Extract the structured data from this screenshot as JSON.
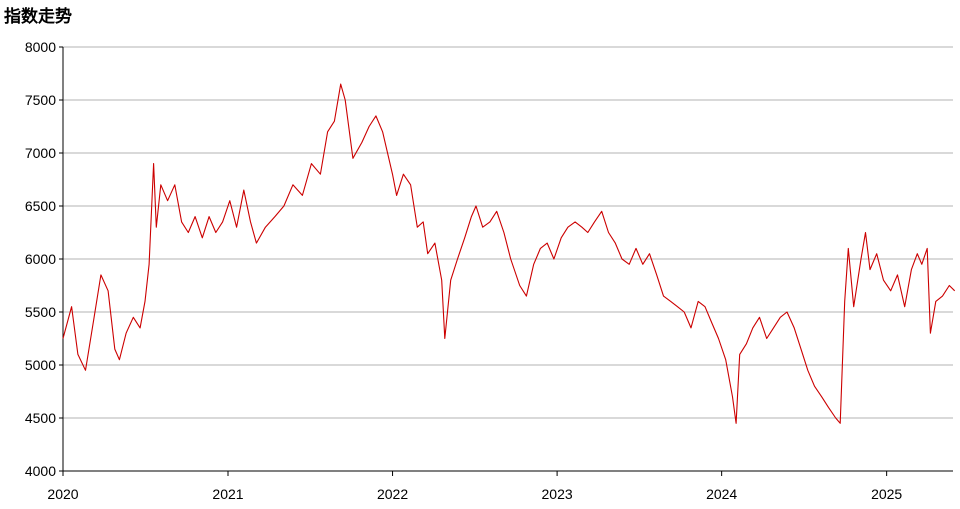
{
  "chart_data": {
    "type": "line",
    "title": "指数走势",
    "xlabel": "",
    "ylabel": "",
    "x_ticks": [
      "2020",
      "2021",
      "2022",
      "2023",
      "2024",
      "2025"
    ],
    "y_ticks": [
      4000,
      4500,
      5000,
      5500,
      6000,
      6500,
      7000,
      7500,
      8000
    ],
    "ylim": [
      4000,
      8000
    ],
    "xlim": [
      "2020-01-01",
      "2025-06-01"
    ],
    "grid": true,
    "legend": "none",
    "colors": {
      "line": "#cc0000",
      "grid": "#b3b3b3"
    },
    "series": [
      {
        "points": [
          [
            "2020-01-01",
            5250
          ],
          [
            "2020-01-20",
            5550
          ],
          [
            "2020-02-03",
            5100
          ],
          [
            "2020-02-20",
            4950
          ],
          [
            "2020-03-10",
            5450
          ],
          [
            "2020-03-25",
            5850
          ],
          [
            "2020-04-10",
            5700
          ],
          [
            "2020-04-25",
            5150
          ],
          [
            "2020-05-05",
            5050
          ],
          [
            "2020-05-20",
            5300
          ],
          [
            "2020-06-05",
            5450
          ],
          [
            "2020-06-20",
            5350
          ],
          [
            "2020-07-01",
            5600
          ],
          [
            "2020-07-10",
            5950
          ],
          [
            "2020-07-20",
            6900
          ],
          [
            "2020-07-26",
            6300
          ],
          [
            "2020-08-05",
            6700
          ],
          [
            "2020-08-20",
            6550
          ],
          [
            "2020-09-05",
            6700
          ],
          [
            "2020-09-20",
            6350
          ],
          [
            "2020-10-05",
            6250
          ],
          [
            "2020-10-20",
            6400
          ],
          [
            "2020-11-05",
            6200
          ],
          [
            "2020-11-20",
            6400
          ],
          [
            "2020-12-05",
            6250
          ],
          [
            "2020-12-20",
            6350
          ],
          [
            "2021-01-05",
            6550
          ],
          [
            "2021-01-20",
            6300
          ],
          [
            "2021-02-05",
            6650
          ],
          [
            "2021-02-20",
            6350
          ],
          [
            "2021-03-05",
            6150
          ],
          [
            "2021-03-25",
            6300
          ],
          [
            "2021-04-15",
            6400
          ],
          [
            "2021-05-05",
            6500
          ],
          [
            "2021-05-25",
            6700
          ],
          [
            "2021-06-15",
            6600
          ],
          [
            "2021-07-05",
            6900
          ],
          [
            "2021-07-25",
            6800
          ],
          [
            "2021-08-10",
            7200
          ],
          [
            "2021-08-25",
            7300
          ],
          [
            "2021-09-08",
            7650
          ],
          [
            "2021-09-18",
            7500
          ],
          [
            "2021-10-05",
            6950
          ],
          [
            "2021-10-25",
            7100
          ],
          [
            "2021-11-10",
            7250
          ],
          [
            "2021-11-25",
            7350
          ],
          [
            "2021-12-10",
            7200
          ],
          [
            "2022-01-01",
            6800
          ],
          [
            "2022-01-10",
            6600
          ],
          [
            "2022-01-25",
            6800
          ],
          [
            "2022-02-10",
            6700
          ],
          [
            "2022-02-25",
            6300
          ],
          [
            "2022-03-10",
            6350
          ],
          [
            "2022-03-20",
            6050
          ],
          [
            "2022-04-05",
            6150
          ],
          [
            "2022-04-20",
            5800
          ],
          [
            "2022-04-27",
            5250
          ],
          [
            "2022-05-10",
            5800
          ],
          [
            "2022-05-25",
            6000
          ],
          [
            "2022-06-10",
            6200
          ],
          [
            "2022-06-25",
            6400
          ],
          [
            "2022-07-05",
            6500
          ],
          [
            "2022-07-20",
            6300
          ],
          [
            "2022-08-05",
            6350
          ],
          [
            "2022-08-20",
            6450
          ],
          [
            "2022-09-05",
            6250
          ],
          [
            "2022-09-20",
            6000
          ],
          [
            "2022-10-10",
            5750
          ],
          [
            "2022-10-25",
            5650
          ],
          [
            "2022-11-10",
            5950
          ],
          [
            "2022-11-25",
            6100
          ],
          [
            "2022-12-10",
            6150
          ],
          [
            "2022-12-25",
            6000
          ],
          [
            "2023-01-10",
            6200
          ],
          [
            "2023-01-25",
            6300
          ],
          [
            "2023-02-10",
            6350
          ],
          [
            "2023-02-25",
            6300
          ],
          [
            "2023-03-10",
            6250
          ],
          [
            "2023-03-25",
            6350
          ],
          [
            "2023-04-10",
            6450
          ],
          [
            "2023-04-25",
            6250
          ],
          [
            "2023-05-10",
            6150
          ],
          [
            "2023-05-25",
            6000
          ],
          [
            "2023-06-10",
            5950
          ],
          [
            "2023-06-25",
            6100
          ],
          [
            "2023-07-10",
            5950
          ],
          [
            "2023-07-25",
            6050
          ],
          [
            "2023-08-10",
            5850
          ],
          [
            "2023-08-25",
            5650
          ],
          [
            "2023-09-10",
            5600
          ],
          [
            "2023-09-25",
            5550
          ],
          [
            "2023-10-10",
            5500
          ],
          [
            "2023-10-25",
            5350
          ],
          [
            "2023-11-10",
            5600
          ],
          [
            "2023-11-25",
            5550
          ],
          [
            "2023-12-10",
            5400
          ],
          [
            "2023-12-25",
            5250
          ],
          [
            "2024-01-10",
            5050
          ],
          [
            "2024-01-25",
            4700
          ],
          [
            "2024-02-02",
            4450
          ],
          [
            "2024-02-10",
            5100
          ],
          [
            "2024-02-25",
            5200
          ],
          [
            "2024-03-10",
            5350
          ],
          [
            "2024-03-25",
            5450
          ],
          [
            "2024-04-10",
            5250
          ],
          [
            "2024-04-25",
            5350
          ],
          [
            "2024-05-10",
            5450
          ],
          [
            "2024-05-25",
            5500
          ],
          [
            "2024-06-10",
            5350
          ],
          [
            "2024-06-25",
            5150
          ],
          [
            "2024-07-10",
            4950
          ],
          [
            "2024-07-25",
            4800
          ],
          [
            "2024-08-10",
            4700
          ],
          [
            "2024-08-25",
            4600
          ],
          [
            "2024-09-10",
            4500
          ],
          [
            "2024-09-20",
            4450
          ],
          [
            "2024-09-30",
            5600
          ],
          [
            "2024-10-08",
            6100
          ],
          [
            "2024-10-20",
            5550
          ],
          [
            "2024-11-05",
            6000
          ],
          [
            "2024-11-15",
            6250
          ],
          [
            "2024-11-25",
            5900
          ],
          [
            "2024-12-10",
            6050
          ],
          [
            "2024-12-25",
            5800
          ],
          [
            "2025-01-10",
            5700
          ],
          [
            "2025-01-25",
            5850
          ],
          [
            "2025-02-10",
            5550
          ],
          [
            "2025-02-25",
            5900
          ],
          [
            "2025-03-10",
            6050
          ],
          [
            "2025-03-20",
            5950
          ],
          [
            "2025-04-01",
            6100
          ],
          [
            "2025-04-08",
            5300
          ],
          [
            "2025-04-20",
            5600
          ],
          [
            "2025-05-05",
            5650
          ],
          [
            "2025-05-20",
            5750
          ],
          [
            "2025-06-01",
            5700
          ]
        ]
      }
    ]
  }
}
